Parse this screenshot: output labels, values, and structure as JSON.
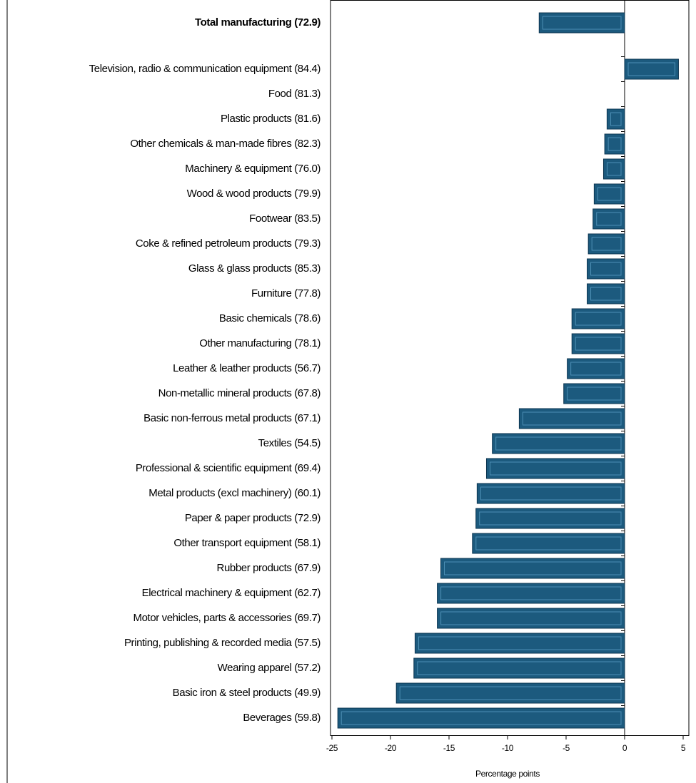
{
  "chart_data": {
    "type": "bar",
    "orientation": "horizontal",
    "x_label": "Percentage points",
    "categories": [
      "Total manufacturing (72.9)",
      "Television, radio & communication equipment (84.4)",
      "Food (81.3)",
      "Plastic products (81.6)",
      "Other chemicals & man-made fibres (82.3)",
      "Machinery & equipment (76.0)",
      "Wood & wood products (79.9)",
      "Footwear (83.5)",
      "Coke & refined petroleum products (79.3)",
      "Glass & glass products (85.3)",
      "Furniture (77.8)",
      "Basic chemicals (78.6)",
      "Other manufacturing (78.1)",
      "Leather & leather products (56.7)",
      "Non-metallic mineral products (67.8)",
      "Basic non-ferrous metal products (67.1)",
      "Textiles (54.5)",
      "Professional & scientific equipment (69.4)",
      "Metal products (excl machinery) (60.1)",
      "Paper & paper products (72.9)",
      "Other transport equipment (58.1)",
      "Rubber products (67.9)",
      "Electrical machinery & equipment (62.7)",
      "Motor vehicles, parts & accessories (69.7)",
      "Printing, publishing & recorded media (57.5)",
      "Wearing apparel (57.2)",
      "Basic iron & steel products (49.9)",
      "Beverages (59.8)"
    ],
    "values": [
      -7.3,
      4.6,
      0,
      -1.5,
      -1.7,
      -1.8,
      -2.6,
      -2.7,
      -3.1,
      -3.2,
      -3.2,
      -4.5,
      -4.5,
      -4.9,
      -5.2,
      -9.0,
      -11.3,
      -11.8,
      -12.6,
      -12.7,
      -13.0,
      -15.7,
      -16.0,
      -16.0,
      -17.9,
      -18.0,
      -19.5,
      -24.5
    ],
    "color": "#1c5a7e",
    "xlim": [
      -25,
      5
    ],
    "xticks": [
      -25,
      -20,
      -15,
      -10,
      -5,
      0,
      5
    ]
  }
}
